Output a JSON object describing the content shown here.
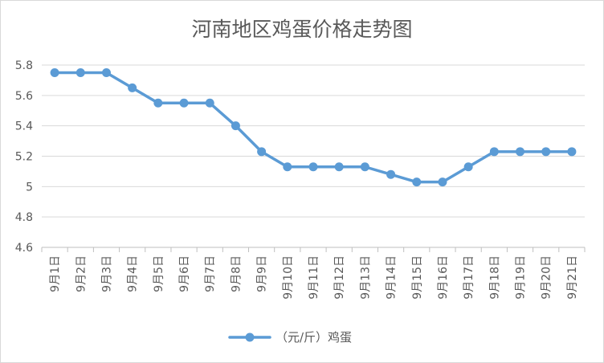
{
  "chart_data": {
    "type": "line",
    "title": "河南地区鸡蛋价格走势图",
    "xlabel": "",
    "ylabel": "",
    "categories": [
      "9月1日",
      "9月2日",
      "9月3日",
      "9月4日",
      "9月5日",
      "9月6日",
      "9月7日",
      "9月8日",
      "9月9日",
      "9月10日",
      "9月11日",
      "9月12日",
      "9月13日",
      "9月14日",
      "9月15日",
      "9月16日",
      "9月17日",
      "9月18日",
      "9月19日",
      "9月20日",
      "9月21日"
    ],
    "series": [
      {
        "name": "（元/斤）鸡蛋",
        "values": [
          5.75,
          5.75,
          5.75,
          5.65,
          5.55,
          5.55,
          5.55,
          5.4,
          5.23,
          5.13,
          5.13,
          5.13,
          5.13,
          5.08,
          5.03,
          5.03,
          5.13,
          5.23,
          5.23,
          5.23,
          5.23
        ],
        "color": "#5b9bd5"
      }
    ],
    "ylim": [
      4.6,
      5.8
    ],
    "yticks": [
      "4.6",
      "4.8",
      "5",
      "5.2",
      "5.4",
      "5.6",
      "5.8"
    ],
    "grid": true,
    "legend_position": "bottom",
    "markers": "circle"
  }
}
